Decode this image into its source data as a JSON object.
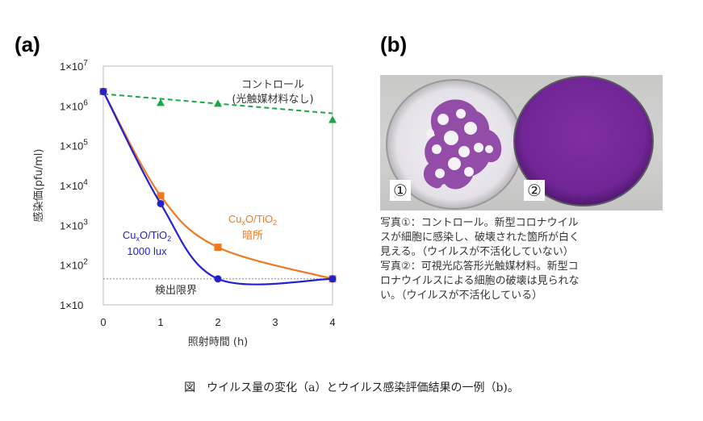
{
  "panel_a_label": "(a)",
  "panel_b_label": "(b)",
  "chart_data": {
    "type": "line",
    "xlabel": "照射時間 (h)",
    "ylabel": "感染価(pfu/ml)",
    "xlim": [
      0,
      4
    ],
    "ylim_log10": [
      1,
      7
    ],
    "yscale": "log",
    "x_ticks": [
      "0",
      "1",
      "2",
      "3",
      "4"
    ],
    "y_ticks": [
      {
        "base": "1×10",
        "exp": ""
      },
      {
        "base": "1×10",
        "exp": "2"
      },
      {
        "base": "1×10",
        "exp": "3"
      },
      {
        "base": "1×10",
        "exp": "4"
      },
      {
        "base": "1×10",
        "exp": "5"
      },
      {
        "base": "1×10",
        "exp": "6"
      },
      {
        "base": "1×10",
        "exp": "7"
      }
    ],
    "detection_limit": {
      "value": 45,
      "label": "検出限界"
    },
    "series": [
      {
        "name": "コントロール (光触媒材料なし)",
        "color": "#1aa844",
        "marker": "triangle",
        "dashed": true,
        "points": [
          [
            0,
            2300000
          ],
          [
            1,
            1200000
          ],
          [
            2,
            1150000
          ],
          [
            4,
            450000
          ]
        ],
        "trend": [
          [
            0,
            2000000
          ],
          [
            4,
            650000
          ]
        ]
      },
      {
        "name": "CuxO/TiO2 暗所",
        "color": "#f07820",
        "marker": "square",
        "dashed": false,
        "points": [
          [
            0,
            2300000
          ],
          [
            1,
            5500
          ],
          [
            2,
            280
          ],
          [
            4,
            45
          ]
        ]
      },
      {
        "name": "CuxO/TiO2 1000 lux",
        "color": "#2222cc",
        "marker": "circle",
        "dashed": false,
        "points": [
          [
            0,
            2300000
          ],
          [
            1,
            3500
          ],
          [
            2,
            45
          ],
          [
            4,
            45
          ]
        ]
      }
    ],
    "annotations": {
      "control_line1": "コントロール",
      "control_line2": "(光触媒材料なし)",
      "dark_line1_a": "Cu",
      "dark_line1_sub1": "x",
      "dark_line1_b": "O/TiO",
      "dark_line1_sub2": "2",
      "dark_line2": "暗所",
      "light_line1_a": "Cu",
      "light_line1_sub1": "x",
      "light_line1_b": "O/TiO",
      "light_line1_sub2": "2",
      "light_line2": "1000 lux"
    }
  },
  "photo": {
    "label_1": "①",
    "label_2": "②",
    "colors": {
      "control_dish": "#e8e6ec",
      "stain": "#8a3ca0",
      "treated_dish": "#7a2a9c"
    }
  },
  "caption_lines": [
    "写真①：コントロール。新型コロナウイル",
    "スが細胞に感染し、破壊された箇所が白く",
    "見える。（ウイルスが不活化していない）",
    "写真②：可視光応答形光触媒材料。新型コ",
    "ロナウイルスによる細胞の破壊は見られな",
    "い。（ウイルスが不活化している）"
  ],
  "figure_caption": "図　ウイルス量の変化（a）とウイルス感染評価結果の一例（b)。"
}
